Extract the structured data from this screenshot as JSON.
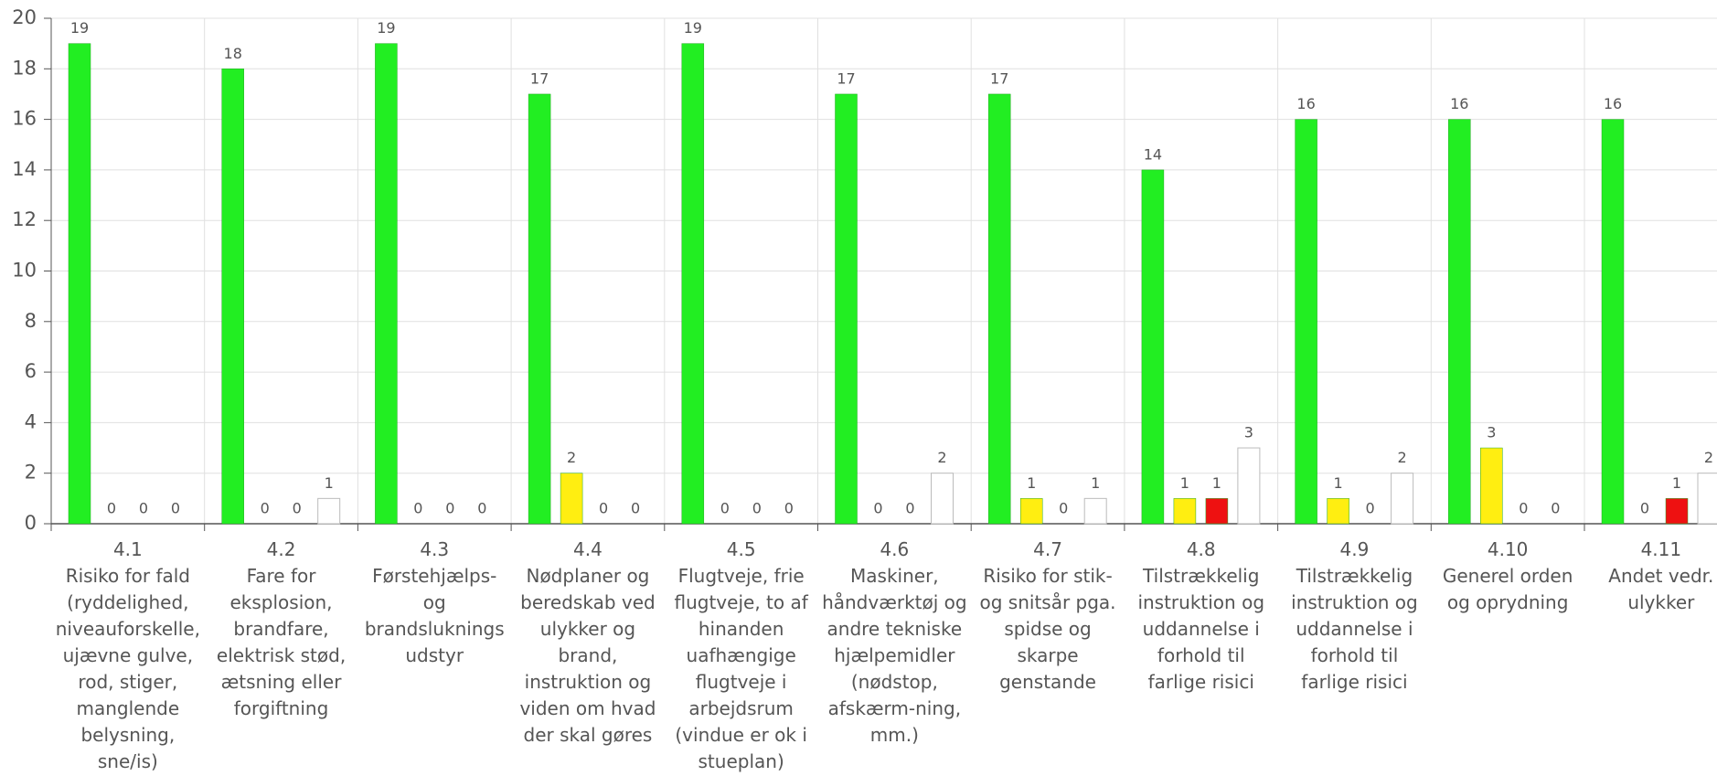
{
  "chart_data": {
    "type": "bar",
    "categories": [
      "4.1\nRisiko for fald (ryddelighed, niveauforskelle, ujævne gulve, rod, stiger, manglende belysning, sne/is)",
      "4.2\nFare for eksplosion, brandfare, elektrisk stød, ætsning eller forgiftning",
      "4.3\nFørstehjælps- og brandslukningsudstyr",
      "4.4\nNødplaner og beredskab ved ulykker og brand, instruktion og viden om hvad der skal gøres",
      "4.5\nFlugtveje, frie flugtveje, to af hinanden uafhængige flugtveje i arbejdsrum (vindue er ok i stueplan)",
      "4.6\nMaskiner, håndværktøj og andre tekniske hjælpemidler (nødstop, afskærm-ning, mm.)",
      "4.7\nRisiko for stik- og snitsår pga. spidse og skarpe genstande",
      "4.8\nTilstrækkelig instruktion og uddannelse i forhold til farlige risici",
      "4.9\nTilstrækkelig instruktion og uddannelse i forhold til farlige risici",
      "4.10\nGenerel orden og oprydning",
      "4.11\nAndet vedr. ulykker"
    ],
    "series": [
      {
        "color": "#22ee22",
        "values": [
          19,
          18,
          19,
          17,
          19,
          17,
          17,
          14,
          16,
          16,
          16
        ]
      },
      {
        "color": "#ffee11",
        "values": [
          0,
          0,
          0,
          2,
          0,
          0,
          1,
          1,
          1,
          3,
          0
        ]
      },
      {
        "color": "#ee1111",
        "values": [
          0,
          0,
          0,
          0,
          0,
          0,
          0,
          1,
          0,
          0,
          1
        ]
      },
      {
        "color": "#ffffff",
        "values": [
          0,
          1,
          0,
          0,
          0,
          2,
          1,
          3,
          2,
          0,
          2
        ]
      }
    ],
    "ylim": [
      0,
      20
    ],
    "yticks": [
      0,
      2,
      4,
      6,
      8,
      10,
      12,
      14,
      16,
      18,
      20
    ],
    "grid": true
  }
}
